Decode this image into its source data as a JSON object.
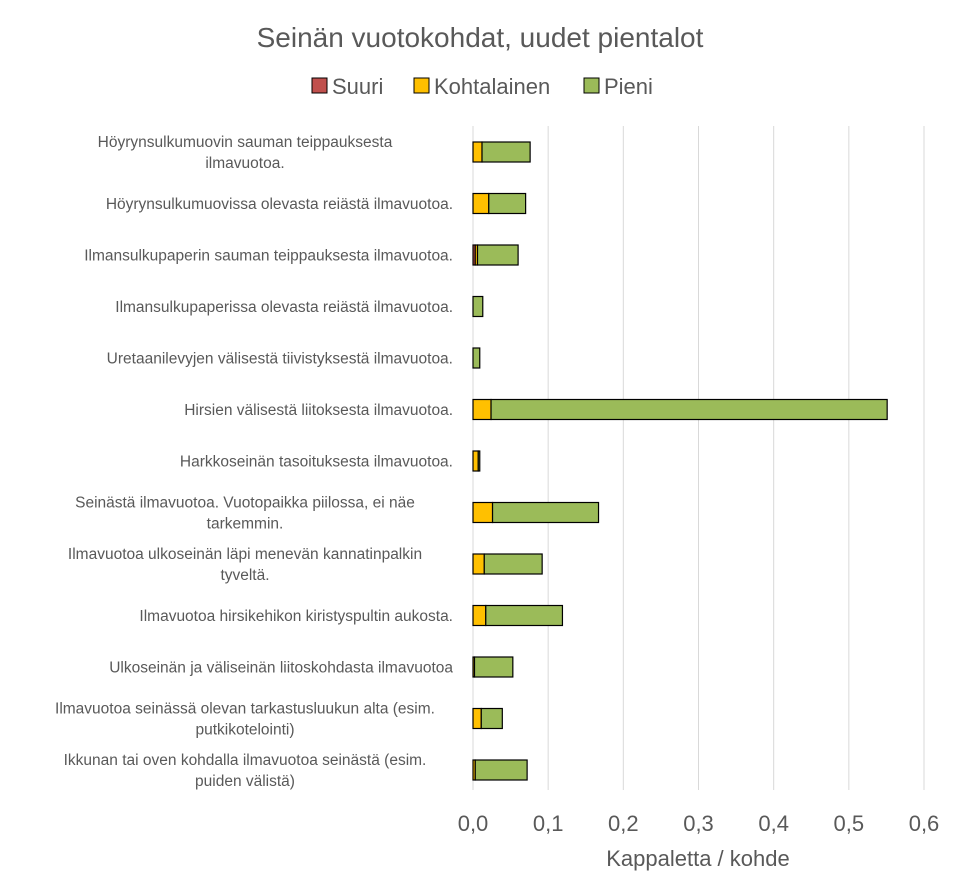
{
  "chart_data": {
    "type": "bar",
    "orientation": "horizontal",
    "stacked": true,
    "title": "Seinän vuotokohdat, uudet pientalot",
    "xlabel": "Kappaletta / kohde",
    "ylabel": "",
    "xlim": [
      0,
      0.6
    ],
    "x_ticks": [
      "0,0",
      "0,1",
      "0,2",
      "0,3",
      "0,4",
      "0,5",
      "0,6"
    ],
    "grid": true,
    "legend_position": "top",
    "categories": [
      "Höyrynsulkumuovin sauman teippauksesta ilmavuotoa.",
      "Höyrynsulkumuovissa olevasta reiästä ilmavuotoa.",
      "Ilmansulkupaperin sauman teippauksesta ilmavuotoa.",
      "Ilmansulkupaperissa olevasta reiästä ilmavuotoa.",
      "Uretaanilevyjen välisestä tiivistyksestä ilmavuotoa.",
      "Hirsien välisestä liitoksesta ilmavuotoa.",
      "Harkkoseinän tasoituksesta ilmavuotoa.",
      "Seinästä ilmavuotoa. Vuotopaikka piilossa, ei näe tarkemmin.",
      "Ilmavuotoa ulkoseinän läpi menevän kannatinpalkin tyveltä.",
      "Ilmavuotoa hirsikehikon kiristyspultin aukosta.",
      "Ulkoseinän ja väliseinän liitoskohdasta ilmavuotoa",
      "Ilmavuotoa seinässä olevan tarkastusluukun alta (esim. putkikotelointi)",
      "Ikkunan tai oven kohdalla ilmavuotoa seinästä (esim. puiden välistä)"
    ],
    "category_label_lines": [
      [
        "Höyrynsulkumuovin sauman teippauksesta",
        "ilmavuotoa."
      ],
      [
        "Höyrynsulkumuovissa olevasta reiästä ilmavuotoa."
      ],
      [
        "Ilmansulkupaperin sauman teippauksesta ilmavuotoa."
      ],
      [
        "Ilmansulkupaperissa olevasta reiästä ilmavuotoa."
      ],
      [
        "Uretaanilevyjen välisestä tiivistyksestä ilmavuotoa."
      ],
      [
        "Hirsien välisestä liitoksesta ilmavuotoa."
      ],
      [
        "Harkkoseinän tasoituksesta ilmavuotoa."
      ],
      [
        "Seinästä ilmavuotoa. Vuotopaikka piilossa, ei näe",
        "tarkemmin."
      ],
      [
        "Ilmavuotoa ulkoseinän läpi menevän kannatinpalkin",
        "tyveltä."
      ],
      [
        "Ilmavuotoa hirsikehikon kiristyspultin aukosta."
      ],
      [
        "Ulkoseinän ja väliseinän liitoskohdasta ilmavuotoa"
      ],
      [
        "Ilmavuotoa seinässä olevan tarkastusluukun alta (esim.",
        "putkikotelointi)"
      ],
      [
        "Ikkunan tai oven kohdalla ilmavuotoa seinästä (esim.",
        "puiden välistä)"
      ]
    ],
    "series": [
      {
        "name": "Suuri",
        "color": "#c0504d",
        "values": [
          0,
          0,
          0.003,
          0,
          0,
          0,
          0,
          0,
          0,
          0,
          0,
          0,
          0
        ]
      },
      {
        "name": "Kohtalainen",
        "color": "#ffc000",
        "values": [
          0.012,
          0.021,
          0.003,
          0,
          0,
          0.024,
          0.007,
          0.026,
          0.015,
          0.017,
          0.002,
          0.011,
          0.003
        ]
      },
      {
        "name": "Pieni",
        "color": "#9bbb59",
        "values": [
          0.064,
          0.049,
          0.054,
          0.013,
          0.009,
          0.527,
          0.002,
          0.141,
          0.077,
          0.102,
          0.051,
          0.028,
          0.069
        ]
      }
    ]
  }
}
